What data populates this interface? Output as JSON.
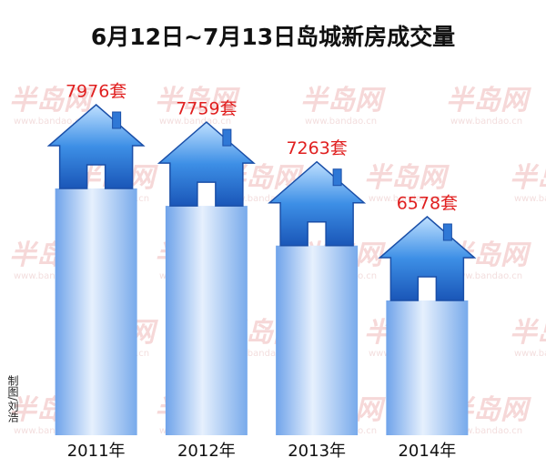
{
  "chart_data": {
    "type": "bar",
    "title": "6月12日~7月13日岛城新房成交量",
    "categories": [
      "2011年",
      "2012年",
      "2013年",
      "2014年"
    ],
    "values": [
      7976,
      7759,
      7263,
      6578
    ],
    "value_labels": [
      "7976套",
      "7759套",
      "7263套",
      "6578套"
    ],
    "label_color": "#e02020",
    "credit": "制图/刘浩",
    "watermark": "半岛网",
    "watermark_url": "www.bandao.cn"
  }
}
